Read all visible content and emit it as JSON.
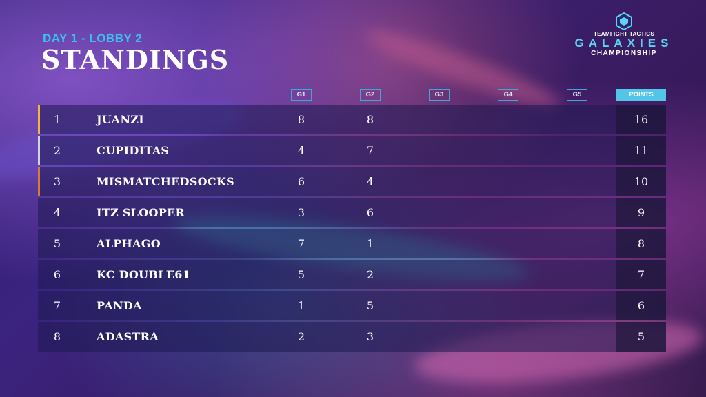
{
  "header": {
    "subtitle": "DAY 1 - LOBBY 2",
    "title": "STANDINGS"
  },
  "logo": {
    "line1": "TEAMFIGHT TACTICS",
    "line2": "GALAXIES",
    "line3": "CHAMPIONSHIP"
  },
  "columns": {
    "g1": "G1",
    "g2": "G2",
    "g3": "G3",
    "g4": "G4",
    "g5": "G5",
    "points": "POINTS"
  },
  "colors": {
    "accent_cyan": "#3ec0ee",
    "rank1": "#f1b63a",
    "rank2": "#cfd3dc",
    "rank3": "#d77b3a"
  },
  "rows": [
    {
      "rank": "1",
      "name": "JUANZI",
      "g1": "8",
      "g2": "8",
      "g3": "",
      "g4": "",
      "g5": "",
      "points": "16"
    },
    {
      "rank": "2",
      "name": "CUPIDITAS",
      "g1": "4",
      "g2": "7",
      "g3": "",
      "g4": "",
      "g5": "",
      "points": "11"
    },
    {
      "rank": "3",
      "name": "MISMATCHEDSOCKS",
      "g1": "6",
      "g2": "4",
      "g3": "",
      "g4": "",
      "g5": "",
      "points": "10"
    },
    {
      "rank": "4",
      "name": "ITZ SLOOPER",
      "g1": "3",
      "g2": "6",
      "g3": "",
      "g4": "",
      "g5": "",
      "points": "9"
    },
    {
      "rank": "5",
      "name": "ALPHAGO",
      "g1": "7",
      "g2": "1",
      "g3": "",
      "g4": "",
      "g5": "",
      "points": "8"
    },
    {
      "rank": "6",
      "name": "KC DOUBLE61",
      "g1": "5",
      "g2": "2",
      "g3": "",
      "g4": "",
      "g5": "",
      "points": "7"
    },
    {
      "rank": "7",
      "name": "PANDA",
      "g1": "1",
      "g2": "5",
      "g3": "",
      "g4": "",
      "g5": "",
      "points": "6"
    },
    {
      "rank": "8",
      "name": "ADASTRA",
      "g1": "2",
      "g2": "3",
      "g3": "",
      "g4": "",
      "g5": "",
      "points": "5"
    }
  ]
}
